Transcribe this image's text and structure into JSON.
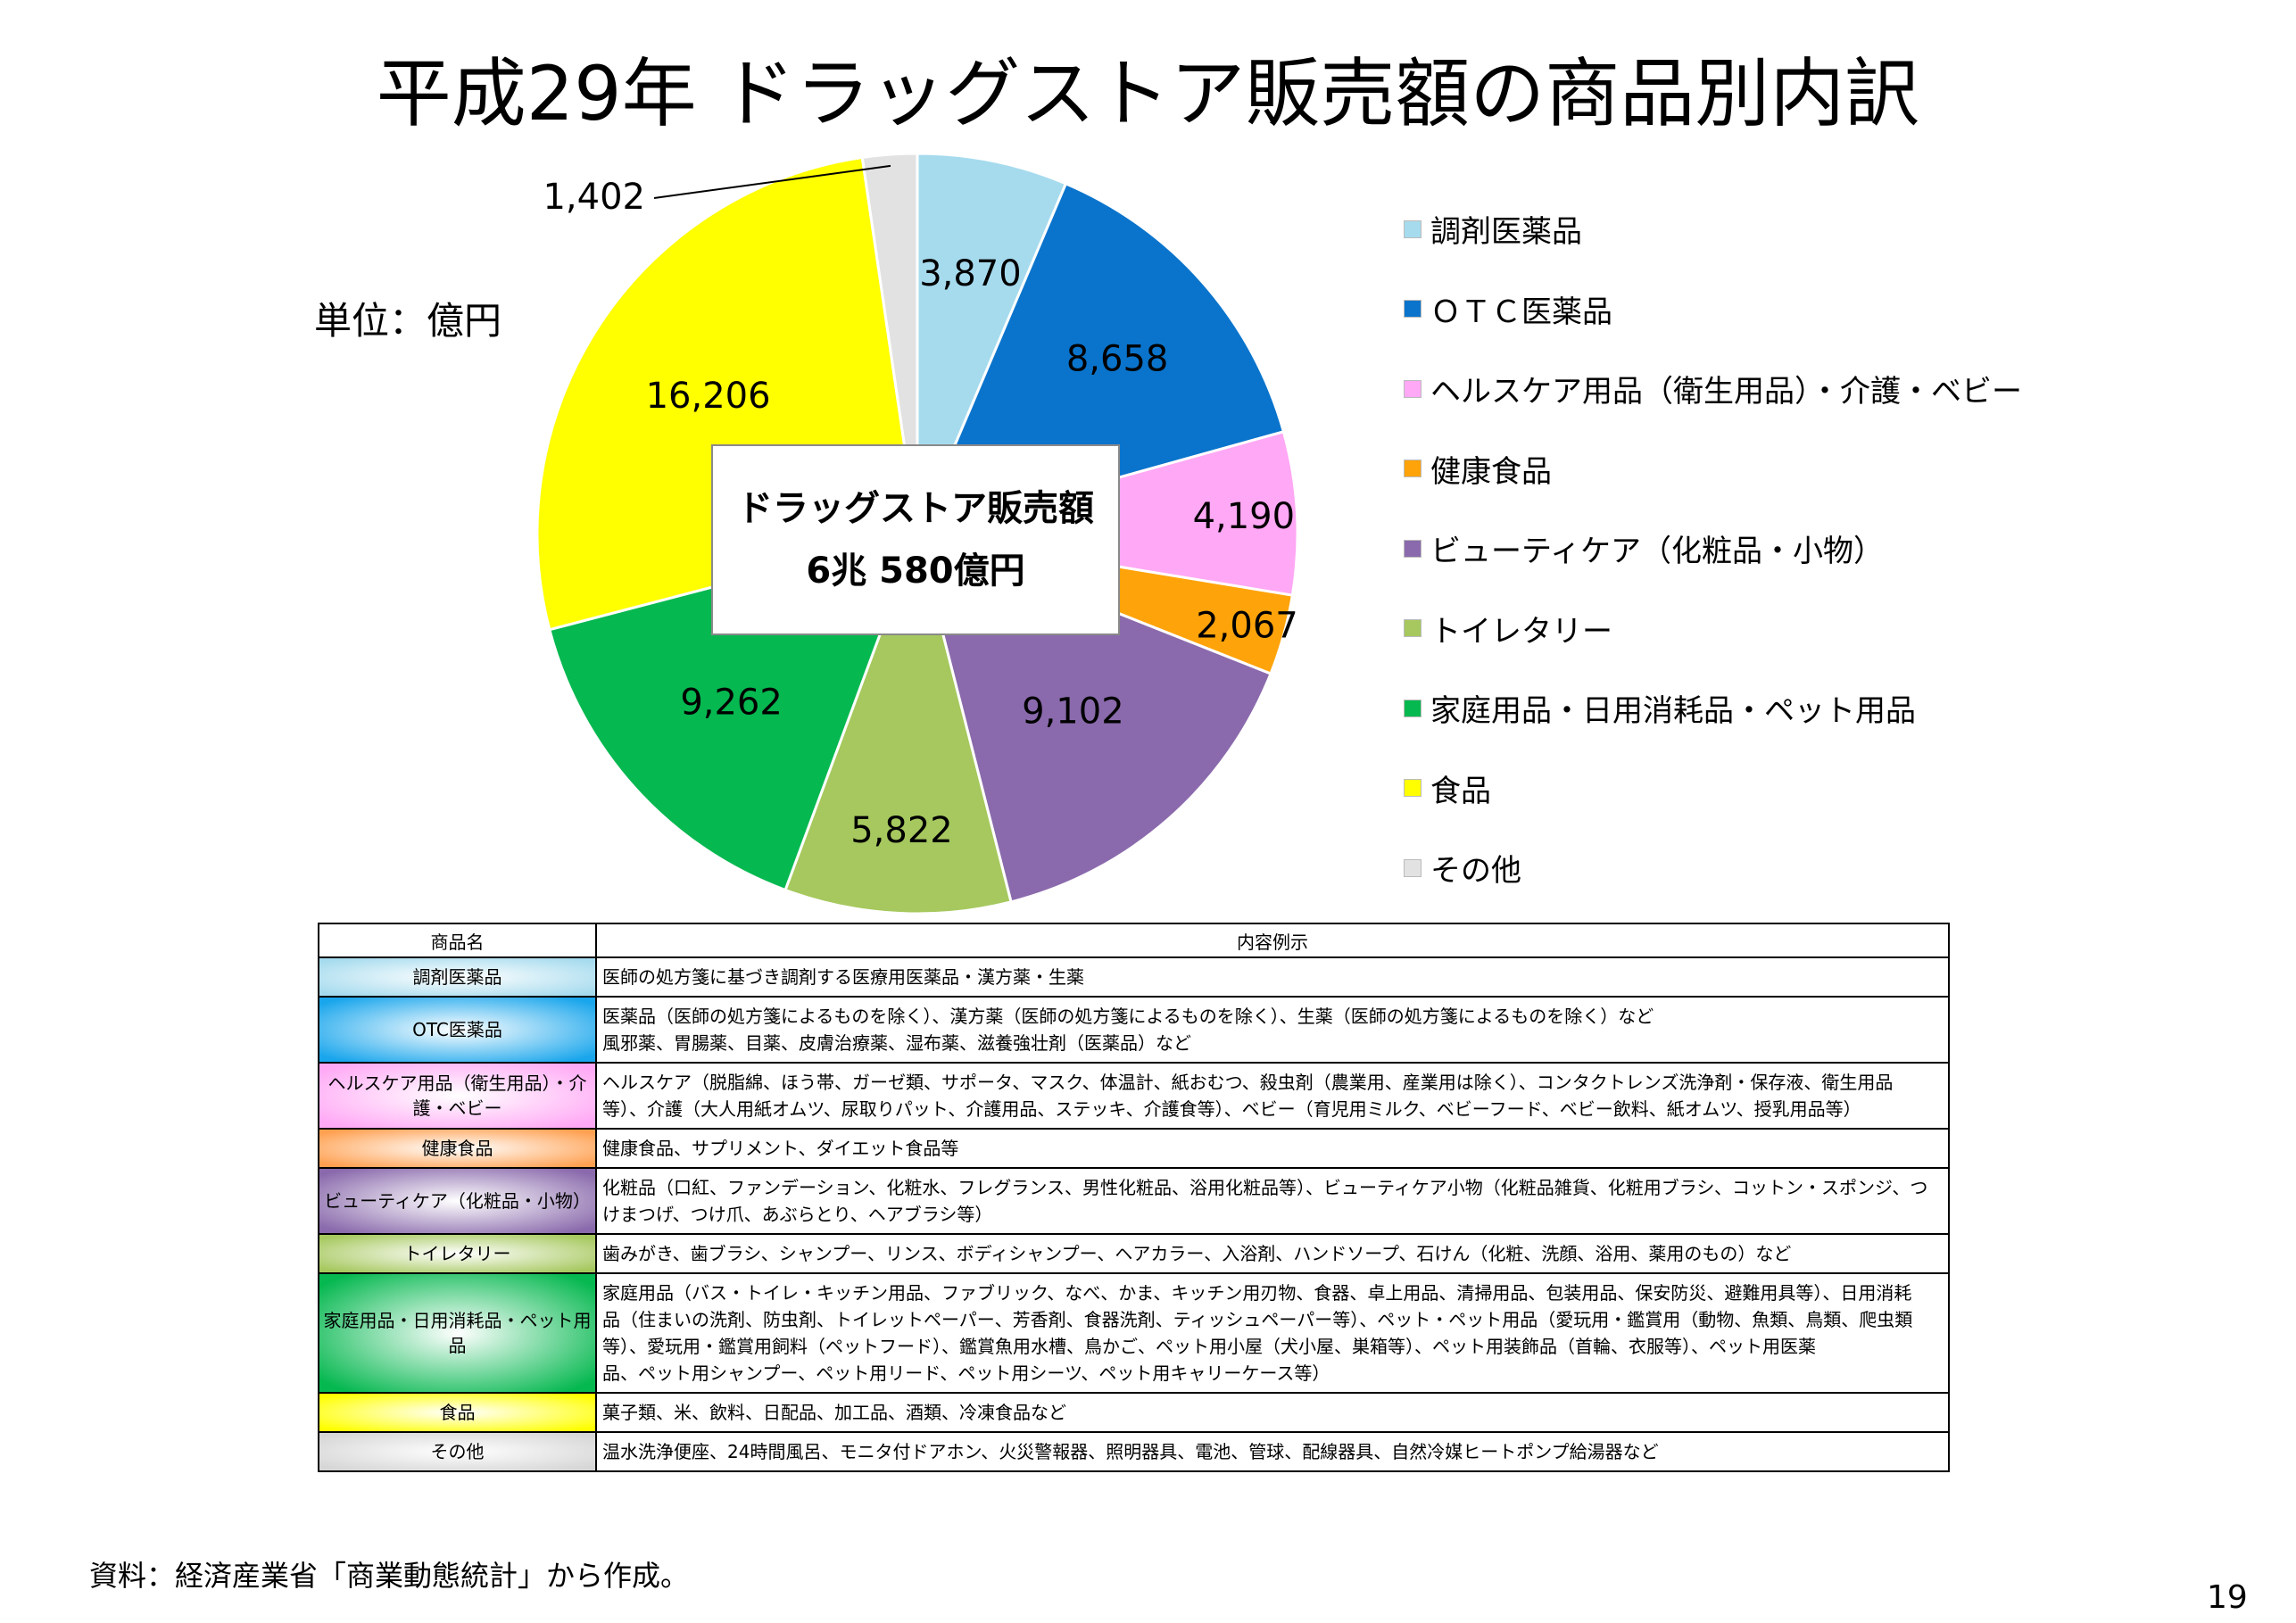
{
  "title": "平成29年 ドラッグストア販売額の商品別内訳",
  "unit_label": "単位：億円",
  "center_box": {
    "line1": "ドラッグストア販売額",
    "line2": "6兆 580億円"
  },
  "chart_data": {
    "type": "pie",
    "categories": [
      "調剤医薬品",
      "ＯＴＣ医薬品",
      "ヘルスケア用品（衛生用品）・介護・ベビー",
      "健康食品",
      "ビューティケア（化粧品・小物）",
      "トイレタリー",
      "家庭用品・日用消耗品・ペット用品",
      "食品",
      "その他"
    ],
    "values": [
      3870,
      8658,
      4190,
      2067,
      9102,
      5822,
      9262,
      16206,
      1402
    ],
    "value_labels": [
      "3,870",
      "8,658",
      "4,190",
      "2,067",
      "9,102",
      "5,822",
      "9,262",
      "16,206",
      "1,402"
    ],
    "colors": [
      "#a6dbee",
      "#0a74cc",
      "#ffa8f5",
      "#ffa30a",
      "#8a6aac",
      "#a6c85e",
      "#06b850",
      "#ffff00",
      "#e2e2e2"
    ],
    "start": "12 o'clock",
    "direction": "clockwise",
    "legend_position": "right"
  },
  "table": {
    "headers": [
      "商品名",
      "内容例示"
    ],
    "rows": [
      {
        "name": "調剤医薬品",
        "color": "#a6dbee",
        "lines": [
          "医師の処方箋に基づき調剤する医療用医薬品・漢方薬・生薬"
        ]
      },
      {
        "name": "OTC医薬品",
        "color": "#1aa6ec",
        "lines": [
          "医薬品（医師の処方箋によるものを除く）、漢方薬（医師の処方箋によるものを除く）、生薬（医師の処方箋によるものを除く）など",
          "風邪薬、胃腸薬、目薬、皮膚治療薬、湿布薬、滋養強壮剤（医薬品）など"
        ]
      },
      {
        "name": "ヘルスケア用品（衛生用品）・介護・ベビー",
        "color": "#ffa8f5",
        "lines": [
          "ヘルスケア（脱脂綿、ほう帯、ガーゼ類、サポータ、マスク、体温計、紙おむつ、殺虫剤（農業用、産業用は除く）、コンタクトレンズ洗浄剤・保存液、衛生用品",
          "等）、介護（大人用紙オムツ、尿取りパット、介護用品、ステッキ、介護食等）、ベビー（育児用ミルク、ベビーフード、ベビー飲料、紙オムツ、授乳用品等）"
        ]
      },
      {
        "name": "健康食品",
        "color": "#ffa050",
        "lines": [
          "健康食品、サプリメント、ダイエット食品等"
        ]
      },
      {
        "name": "ビューティケア（化粧品・小物）",
        "color": "#8a6aac",
        "lines": [
          "化粧品（口紅、ファンデーション、化粧水、フレグランス、男性化粧品、浴用化粧品等）、ビューティケア小物（化粧品雑貨、化粧用ブラシ、コットン・スポンジ、つ",
          "けまつげ、つけ爪、あぶらとり、ヘアブラシ等）"
        ]
      },
      {
        "name": "トイレタリー",
        "color": "#a6c85e",
        "lines": [
          "歯みがき、歯ブラシ、シャンプー、リンス、ボディシャンプー、ヘアカラー、入浴剤、ハンドソープ、石けん（化粧、洗顔、浴用、薬用のもの）など"
        ]
      },
      {
        "name": "家庭用品・日用消耗品・ペット用品",
        "color": "#06b850",
        "lines": [
          "家庭用品（バス・トイレ・キッチン用品、ファブリック、なべ、かま、キッチン用刃物、食器、卓上用品、清掃用品、包装用品、保安防災、避難用具等）、日用消耗",
          "品（住まいの洗剤、防虫剤、トイレットペーパー、芳香剤、食器洗剤、ティッシュペーパー等）、ペット・ペット用品（愛玩用・鑑賞用（動物、魚類、鳥類、爬虫類",
          "等）、愛玩用・鑑賞用飼料（ペットフード）、鑑賞魚用水槽、鳥かご、ペット用小屋（犬小屋、巣箱等）、ペット用装飾品（首輪、衣服等）、ペット用医薬",
          "品、ペット用シャンプー、ペット用リード、ペット用シーツ、ペット用キャリーケース等）"
        ]
      },
      {
        "name": "食品",
        "color": "#ffff00",
        "lines": [
          "菓子類、米、飲料、日配品、加工品、酒類、冷凍食品など"
        ]
      },
      {
        "name": "その他",
        "color": "#d6d6d6",
        "lines": [
          "温水洗浄便座、24時間風呂、モニタ付ドアホン、火災警報器、照明器具、電池、管球、配線器具、自然冷媒ヒートポンプ給湯器など"
        ]
      }
    ]
  },
  "source": "資料：経済産業省「商業動態統計」から作成。",
  "page_number": "19"
}
